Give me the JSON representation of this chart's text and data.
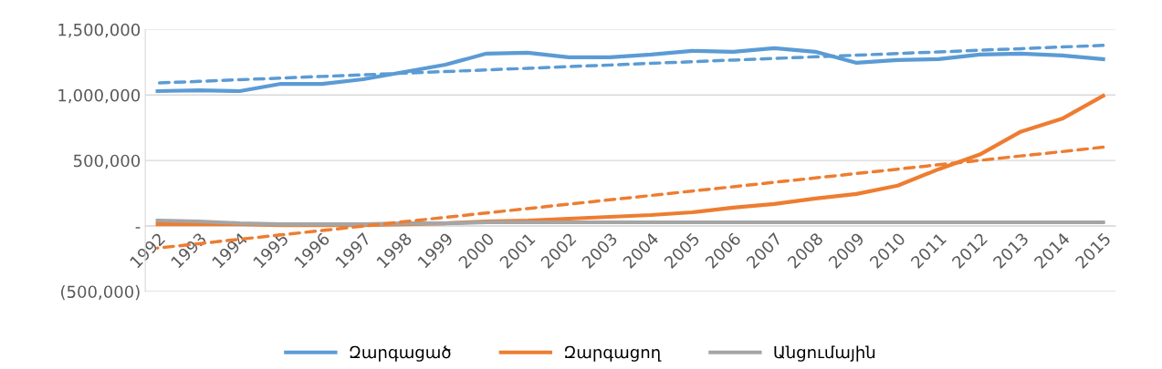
{
  "chart_data": {
    "type": "line",
    "categories": [
      "1992",
      "1993",
      "1994",
      "1995",
      "1996",
      "1997",
      "1998",
      "1999",
      "2000",
      "2001",
      "2002",
      "2003",
      "2004",
      "2005",
      "2006",
      "2007",
      "2008",
      "2009",
      "2010",
      "2011",
      "2012",
      "2013",
      "2014",
      "2015"
    ],
    "series": [
      {
        "name": "Զարգացած",
        "color": "#5b9bd5",
        "values": [
          1030000,
          1036000,
          1030000,
          1085000,
          1085000,
          1120000,
          1176000,
          1232000,
          1316000,
          1323000,
          1288000,
          1288000,
          1309000,
          1337000,
          1330000,
          1358000,
          1330000,
          1246000,
          1267000,
          1274000,
          1309000,
          1316000,
          1302000,
          1274000
        ]
      },
      {
        "name": "Զարգացող",
        "color": "#ed7d31",
        "values": [
          14000,
          14000,
          14000,
          7000,
          7000,
          7000,
          14000,
          21000,
          35000,
          42000,
          56000,
          70000,
          84000,
          105000,
          140000,
          168000,
          210000,
          245000,
          308000,
          434000,
          546000,
          721000,
          819000,
          994000
        ]
      },
      {
        "name": "Անցումային",
        "color": "#a5a5a5",
        "values": [
          42000,
          35000,
          21000,
          14000,
          14000,
          14000,
          21000,
          21000,
          28000,
          28000,
          28000,
          28000,
          28000,
          28000,
          28000,
          28000,
          28000,
          28000,
          28000,
          28000,
          28000,
          28000,
          28000,
          28000
        ]
      },
      {
        "color": "#5b9bd5",
        "line_style": "dashed",
        "values": [
          1092000,
          1104000,
          1117000,
          1129000,
          1142000,
          1154000,
          1167000,
          1179000,
          1192000,
          1204000,
          1217000,
          1229000,
          1242000,
          1254000,
          1267000,
          1279000,
          1292000,
          1304000,
          1317000,
          1329000,
          1342000,
          1354000,
          1367000,
          1379000
        ]
      },
      {
        "color": "#ed7d31",
        "line_style": "dashed",
        "values": [
          -168000,
          -135000,
          -101000,
          -68000,
          -34000,
          -1000,
          33000,
          66000,
          100000,
          133000,
          167000,
          200000,
          233000,
          267000,
          300000,
          334000,
          367000,
          401000,
          434000,
          468000,
          501000,
          535000,
          568000,
          602000
        ]
      }
    ],
    "ylim": [
      -500000,
      1500000
    ],
    "yticks": [
      {
        "value": -500000,
        "label": "(500,000)"
      },
      {
        "value": 0,
        "label": "-"
      },
      {
        "value": 500000,
        "label": "500,000"
      },
      {
        "value": 1000000,
        "label": "1,000,000"
      },
      {
        "value": 1500000,
        "label": "1,500,000"
      }
    ],
    "grid": "y",
    "legend": "bottom"
  }
}
